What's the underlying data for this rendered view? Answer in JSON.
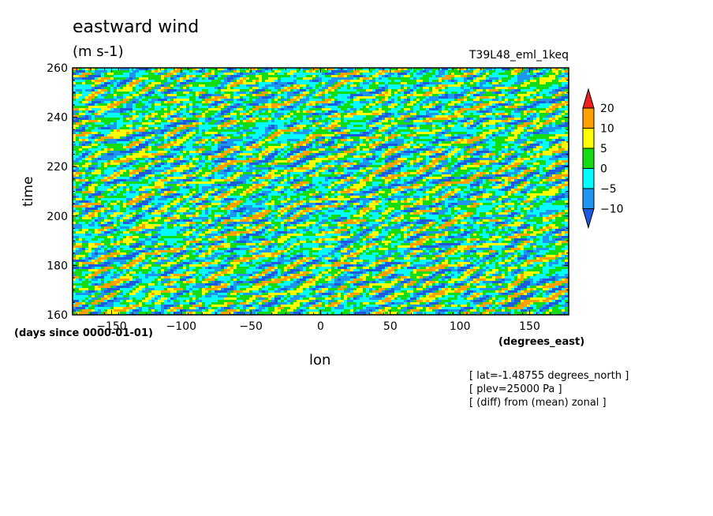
{
  "page": {
    "title": "eastward wind",
    "units": "(m s-1)",
    "run_name": "T39L48_eml_1keq",
    "notes": [
      "[ lat=-1.48755 degrees_north ]",
      "[ plev=25000 Pa ]",
      "[ (diff) from (mean) zonal ]"
    ]
  },
  "chart_data": {
    "type": "heatmap",
    "title": "eastward wind",
    "subtitle": "(m s-1)",
    "xlabel": "lon",
    "xunits": "(degrees_east)",
    "ylabel": "time",
    "yunits": "(days since 0000-01-01)",
    "xlim": [
      -178,
      178
    ],
    "ylim": [
      160,
      260
    ],
    "x_ticks": [
      -150,
      -100,
      -50,
      0,
      50,
      100,
      150
    ],
    "x_tick_labels": [
      "−150",
      "−100",
      "−50",
      "0",
      "50",
      "100",
      "150"
    ],
    "y_ticks": [
      160,
      180,
      200,
      220,
      240,
      260
    ],
    "y_tick_labels": [
      "160",
      "180",
      "200",
      "220",
      "240",
      "260"
    ],
    "levels": [
      -10,
      -5,
      0,
      5,
      10,
      20
    ],
    "colorbar_labels": [
      "20",
      "10",
      "5",
      "0",
      "−5",
      "−10"
    ],
    "colors": {
      "below_-10": "#1e5adc",
      "-10_to_-5": "#1e96f0",
      "-5_to_0": "#00ffff",
      "0_to_5": "#14dc14",
      "5_to_10": "#ffff00",
      "10_to_20": "#ffa000",
      "above_20": "#f01e1e"
    },
    "grid": false,
    "legend": "right"
  }
}
